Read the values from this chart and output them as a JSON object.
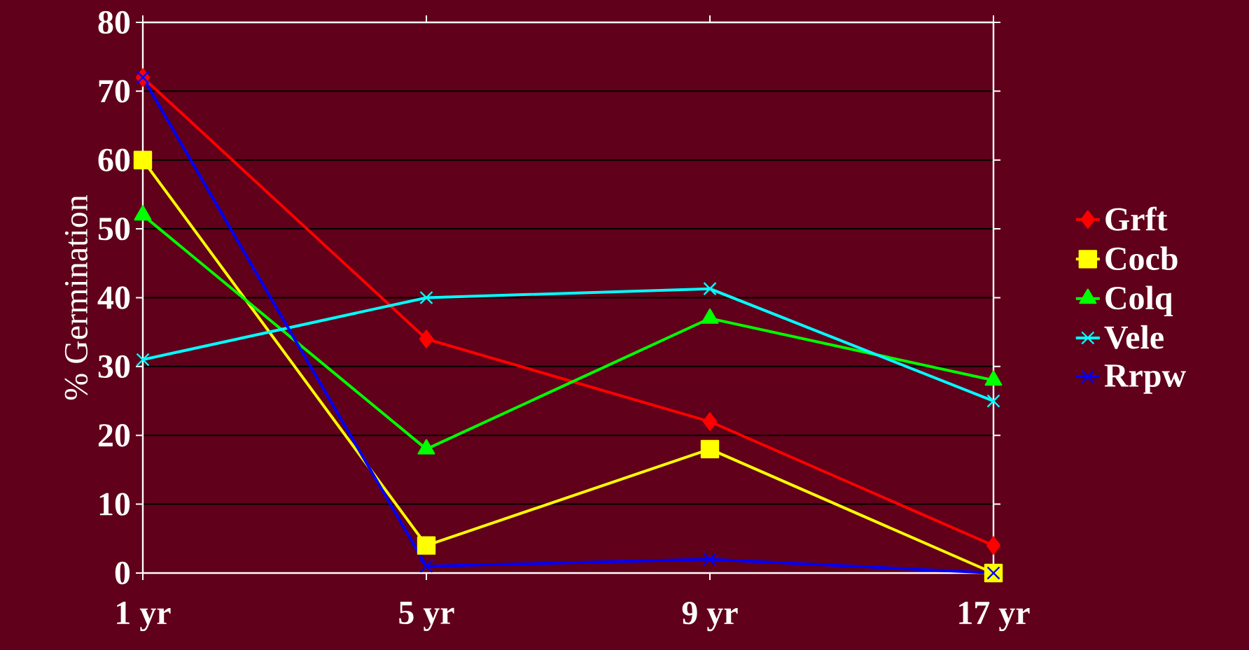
{
  "chart_data": {
    "type": "line",
    "ylabel": "% Germination",
    "categories": [
      "1 yr",
      "5 yr",
      "9 yr",
      "17 yr"
    ],
    "series": [
      {
        "name": "Grft",
        "color": "#ff0000",
        "marker": "diamond",
        "values": [
          72,
          34,
          22,
          4
        ]
      },
      {
        "name": "Cocb",
        "color": "#ffff00",
        "marker": "square",
        "values": [
          60,
          4,
          18,
          0
        ]
      },
      {
        "name": "Colq",
        "color": "#00ff00",
        "marker": "triangle",
        "values": [
          52,
          18,
          37,
          28
        ]
      },
      {
        "name": "Vele",
        "color": "#00ffff",
        "marker": "cross",
        "values": [
          31,
          40,
          41.3,
          25
        ]
      },
      {
        "name": "Rrpw",
        "color": "#0000ff",
        "marker": "cross",
        "values": [
          72,
          1,
          2,
          0
        ]
      }
    ],
    "ylim": [
      0,
      80
    ],
    "yticks": [
      0,
      10,
      20,
      30,
      40,
      50,
      60,
      70,
      80
    ],
    "grid": "y",
    "legend": "right",
    "line_style": "solid"
  }
}
